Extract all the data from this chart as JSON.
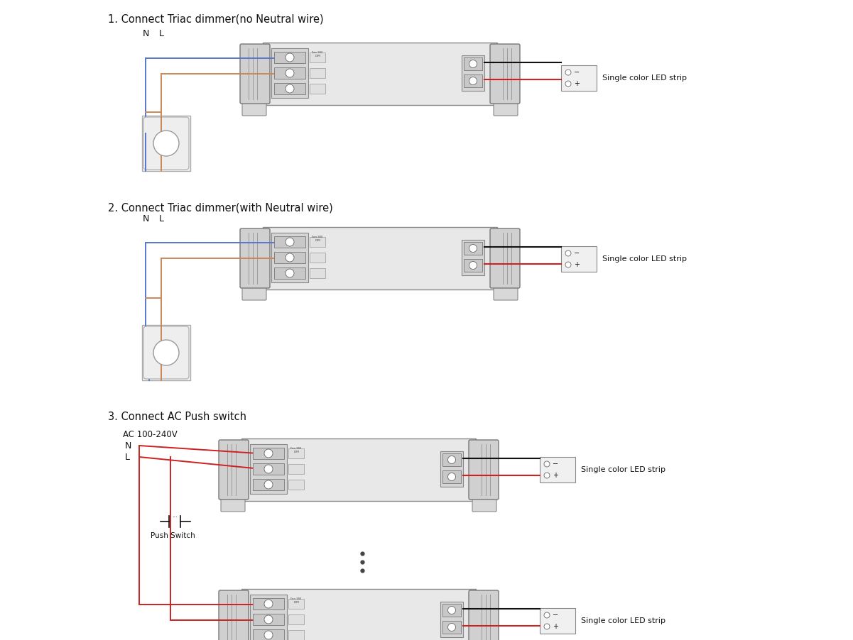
{
  "bg_color": "#ffffff",
  "title1": "1. Connect Triac dimmer(no Neutral wire)",
  "title2": "2. Connect Triac dimmer(with Neutral wire)",
  "title3": "3. Connect AC Push switch",
  "label_single": "Single color LED strip",
  "label_push": "Push Switch",
  "label_ac": "AC 100-240V",
  "label_N": "N",
  "label_L": "L",
  "color_blue": "#5577cc",
  "color_brown": "#cc8855",
  "color_red": "#cc2222",
  "color_black": "#111111",
  "title_fontsize": 10.5,
  "label_fontsize": 8.0
}
